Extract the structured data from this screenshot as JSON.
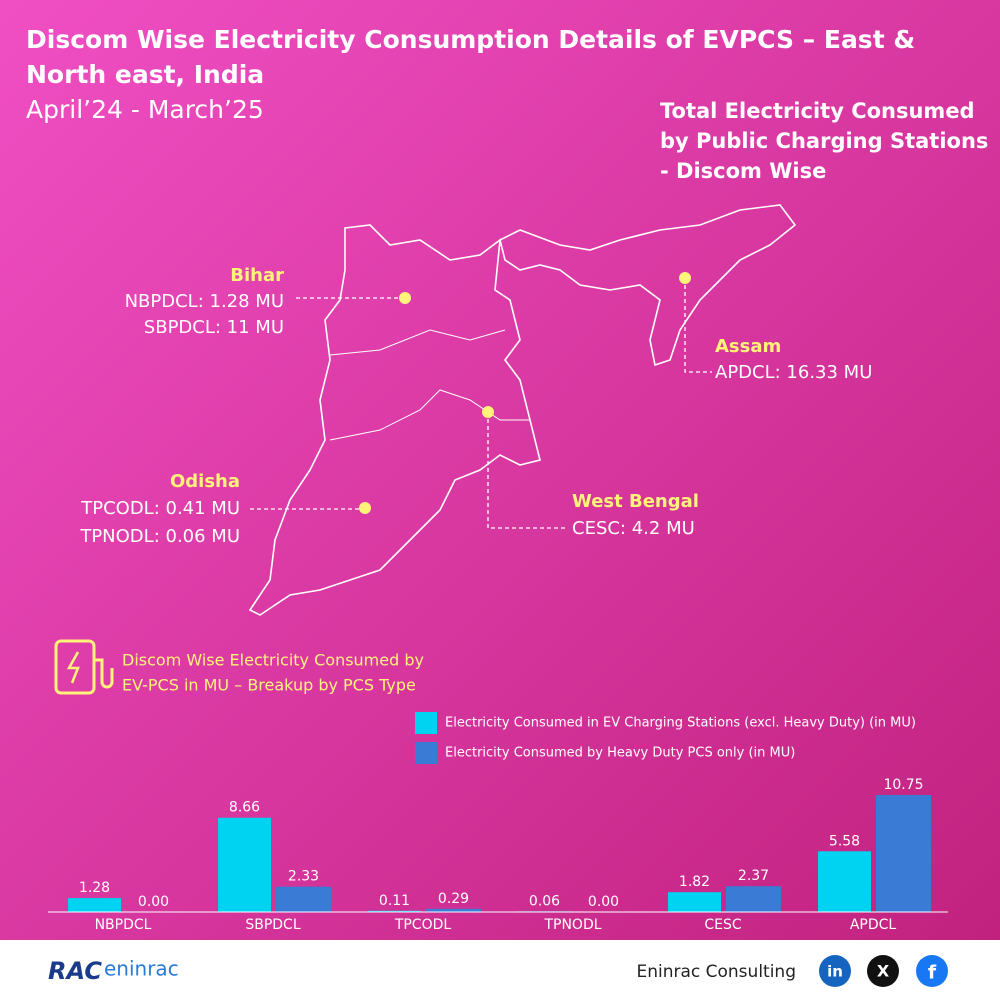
{
  "header": {
    "title_lines": [
      "Discom Wise Electricity Consumption Details of EVPCS – East &",
      "North east, India"
    ],
    "period": "April’24 - March’25",
    "map_title_lines": [
      "Total Electricity Consumed",
      "by Public Charging Stations",
      "- Discom Wise"
    ]
  },
  "map": {
    "regions": [
      {
        "name": "Bihar",
        "lines": [
          "NBPDCL: 1.28 MU",
          "SBPDCL: 11 MU"
        ]
      },
      {
        "name": "Assam",
        "lines": [
          "APDCL: 16.33 MU"
        ]
      },
      {
        "name": "Odisha",
        "lines": [
          "TPCODL: 0.41 MU",
          "TPNODL: 0.06 MU"
        ]
      },
      {
        "name": "West Bengal",
        "lines": [
          "CESC: 4.2 MU"
        ]
      }
    ]
  },
  "section_title_lines": [
    "Discom Wise Electricity Consumed by",
    "EV-PCS in MU – Breakup by PCS Type"
  ],
  "chart_data": {
    "type": "bar",
    "categories": [
      "NBPDCL",
      "SBPDCL",
      "TPCODL",
      "TPNODL",
      "CESC",
      "APDCL"
    ],
    "series": [
      {
        "name": "Electricity Consumed in EV Charging Stations (excl. Heavy Duty) (in MU)",
        "color": "#00d2f2",
        "values": [
          1.28,
          8.66,
          0.11,
          0.06,
          1.82,
          5.58
        ],
        "value_labels": [
          "1.28",
          "8.66",
          "0.11",
          "0.06",
          "1.82",
          "5.58"
        ]
      },
      {
        "name": "Electricity Consumed by Heavy Duty PCS only (in MU)",
        "color": "#3a7bd5",
        "values": [
          0,
          2.33,
          0.29,
          0,
          2.37,
          10.75
        ],
        "value_labels": [
          "0.00",
          "2.33",
          "0.29",
          "0.00",
          "2.37",
          "10.75"
        ]
      }
    ]
  },
  "footer": {
    "logo_left": "RAC",
    "logo_right": "eninrac",
    "company": "Eninrac Consulting",
    "social": [
      "in",
      "X",
      "f"
    ]
  }
}
